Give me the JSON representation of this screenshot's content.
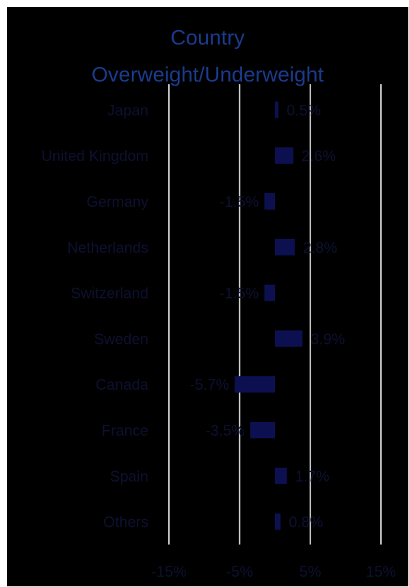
{
  "chart_data": {
    "type": "bar",
    "orientation": "horizontal",
    "title": "Country Overweight/Underweight",
    "title_lines": [
      "Country",
      "Overweight/Underweight"
    ],
    "categories": [
      "Japan",
      "United Kingdom",
      "Germany",
      "Netherlands",
      "Switzerland",
      "Sweden",
      "Canada",
      "France",
      "Spain",
      "Others"
    ],
    "values": [
      0.5,
      2.6,
      -1.5,
      2.8,
      -1.5,
      3.9,
      -5.7,
      -3.5,
      1.7,
      0.8
    ],
    "value_labels": [
      "0.5%",
      "2.6%",
      "-1.5%",
      "2.8%",
      "-1.5%",
      "3.9%",
      "-5.7%",
      "-3.5%",
      "1.7%",
      "0.8%"
    ],
    "xlim": [
      -15,
      15
    ],
    "xticks": [
      -15,
      -5,
      5,
      15
    ],
    "xtick_labels": [
      "-15%",
      "-5%",
      "5%",
      "15%"
    ],
    "grid": true,
    "legend": "none",
    "colors": {
      "background": "#000000",
      "bar": "#0d1050",
      "text": "#0d1030",
      "title": "#1a3b8c",
      "grid": "#d9d9d9"
    }
  }
}
